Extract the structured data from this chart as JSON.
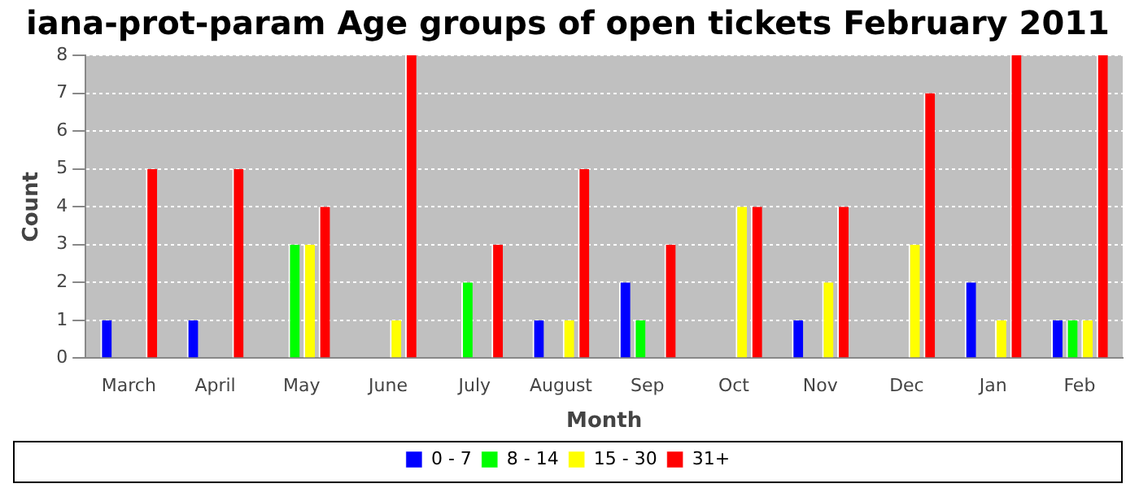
{
  "chart_data": {
    "type": "bar",
    "title": "iana-prot-param Age groups of open tickets February 2011",
    "xlabel": "Month",
    "ylabel": "Count",
    "categories": [
      "March",
      "April",
      "May",
      "June",
      "July",
      "August",
      "Sep",
      "Oct",
      "Nov",
      "Dec",
      "Jan",
      "Feb"
    ],
    "series": [
      {
        "name": "0 - 7",
        "color": "#0000ff",
        "values": [
          1,
          1,
          0,
          0,
          0,
          1,
          2,
          0,
          1,
          0,
          2,
          1
        ]
      },
      {
        "name": "8 - 14",
        "color": "#00ff00",
        "values": [
          0,
          0,
          3,
          0,
          2,
          0,
          1,
          0,
          0,
          0,
          0,
          1
        ]
      },
      {
        "name": "15 - 30",
        "color": "#ffff00",
        "values": [
          0,
          0,
          3,
          1,
          0,
          1,
          0,
          4,
          2,
          3,
          1,
          1
        ]
      },
      {
        "name": "31+",
        "color": "#ff0000",
        "values": [
          5,
          5,
          4,
          8,
          3,
          5,
          3,
          4,
          4,
          7,
          8,
          8
        ]
      }
    ],
    "ylim": [
      0,
      8
    ],
    "yticks": [
      0,
      1,
      2,
      3,
      4,
      5,
      6,
      7,
      8
    ],
    "grid": "y",
    "legend": "bottom"
  }
}
